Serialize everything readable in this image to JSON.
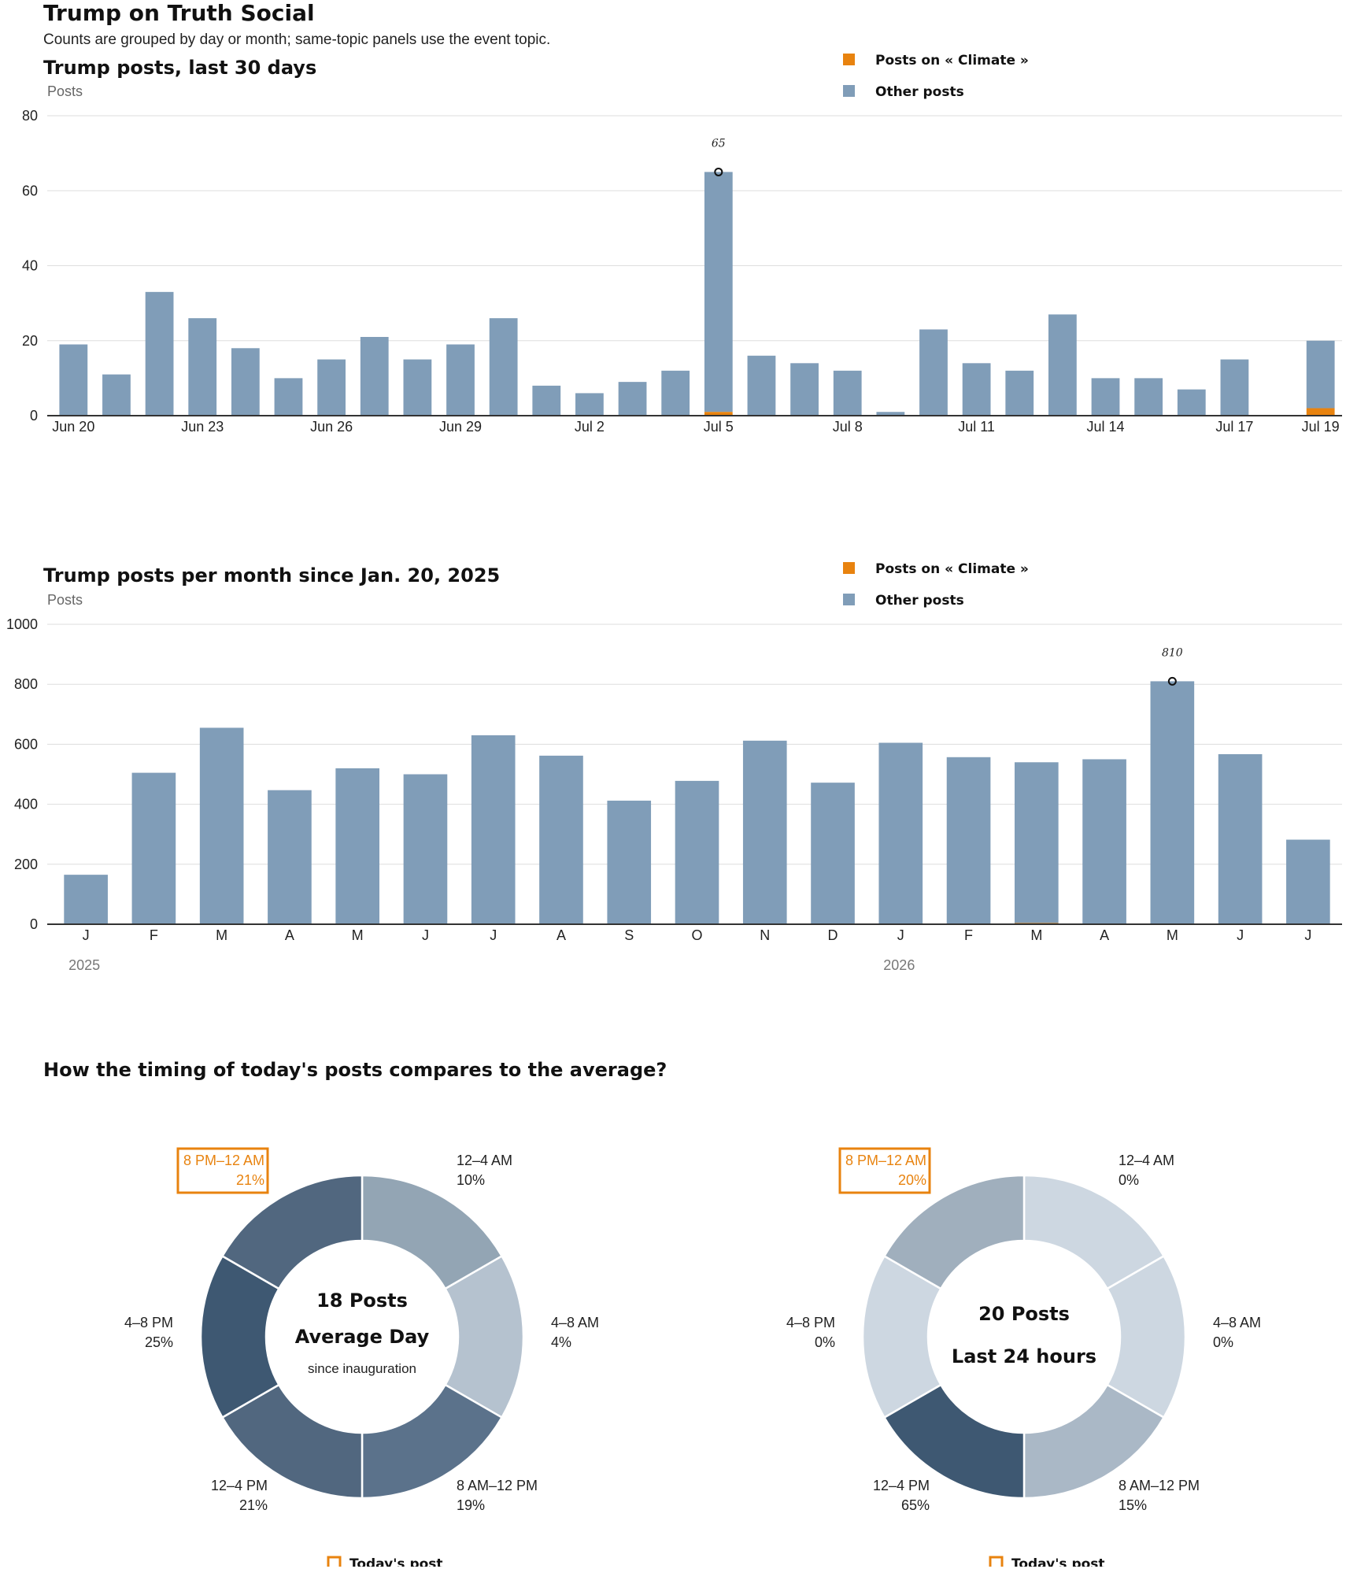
{
  "header": {
    "title": "Trump on Truth Social",
    "subtitle": "Counts are grouped by day or month; same-topic panels use the event topic."
  },
  "colors": {
    "topic": "#e8830f",
    "other": "#809db8",
    "axis": "#333333",
    "grid": "#dddddd"
  },
  "chart_data": [
    {
      "type": "bar",
      "stacked": true,
      "title": "Trump posts, last 30 days",
      "ylabel": "Posts",
      "ylim": [
        0,
        80
      ],
      "yticks": [
        0,
        20,
        40,
        60,
        80
      ],
      "grid": true,
      "legend": {
        "placement": "top-right",
        "entries": [
          "Posts on « Climate »",
          "Other posts"
        ]
      },
      "categories": [
        "Jun 20",
        "Jun 21",
        "Jun 22",
        "Jun 23",
        "Jun 24",
        "Jun 25",
        "Jun 26",
        "Jun 27",
        "Jun 28",
        "Jun 29",
        "Jun 30",
        "Jul 1",
        "Jul 2",
        "Jul 3",
        "Jul 4",
        "Jul 5",
        "Jul 6",
        "Jul 7",
        "Jul 8",
        "Jul 9",
        "Jul 10",
        "Jul 11",
        "Jul 12",
        "Jul 13",
        "Jul 14",
        "Jul 15",
        "Jul 16",
        "Jul 17",
        "Jul 18",
        "Jul 19"
      ],
      "tick_labels": [
        "Jun 20",
        "Jun 23",
        "Jun 26",
        "Jun 29",
        "Jul 2",
        "Jul 5",
        "Jul 8",
        "Jul 11",
        "Jul 14",
        "Jul 17",
        "Jul 19"
      ],
      "series": [
        {
          "name": "Posts on « Climate »",
          "color": "#e8830f",
          "values": [
            0,
            0,
            0,
            0,
            0,
            0,
            0,
            0,
            0,
            0,
            0,
            0,
            0,
            0,
            0,
            1,
            0,
            0,
            0,
            0,
            0,
            0,
            0,
            0,
            0,
            0,
            0,
            0,
            0,
            2
          ]
        },
        {
          "name": "Other posts",
          "color": "#809db8",
          "values": [
            19,
            11,
            33,
            26,
            18,
            10,
            15,
            21,
            15,
            19,
            26,
            8,
            6,
            9,
            12,
            64,
            16,
            14,
            12,
            1,
            23,
            14,
            12,
            27,
            10,
            10,
            7,
            15,
            0,
            18
          ]
        }
      ],
      "annotation": {
        "category": "Jul 5",
        "label": "65"
      }
    },
    {
      "type": "bar",
      "stacked": true,
      "title": "Trump posts per month since Jan. 20, 2025",
      "ylabel": "Posts",
      "ylim": [
        0,
        1000
      ],
      "yticks": [
        0,
        200,
        400,
        600,
        800,
        1000
      ],
      "grid": true,
      "legend": {
        "placement": "top-right",
        "entries": [
          "Posts on « Climate »",
          "Other posts"
        ]
      },
      "categories": [
        "J",
        "F",
        "M",
        "A",
        "M",
        "J",
        "J",
        "A",
        "S",
        "O",
        "N",
        "D",
        "J",
        "F",
        "M",
        "A",
        "M",
        "J",
        "J"
      ],
      "year_labels": [
        {
          "index": 0,
          "label": "2025"
        },
        {
          "index": 12,
          "label": "2026"
        }
      ],
      "series": [
        {
          "name": "Posts on « Climate »",
          "color": "#e8830f",
          "values": [
            0,
            0,
            0,
            0,
            0,
            0,
            0,
            0,
            0,
            0,
            0,
            0,
            0,
            0,
            4,
            0,
            0,
            0,
            0
          ]
        },
        {
          "name": "Other posts",
          "color": "#809db8",
          "values": [
            165,
            505,
            655,
            447,
            520,
            500,
            630,
            562,
            412,
            478,
            612,
            472,
            605,
            557,
            536,
            550,
            810,
            567,
            282
          ]
        }
      ],
      "annotation": {
        "category_index": 16,
        "label": "810"
      }
    },
    {
      "type": "pie",
      "donut": true,
      "section_title": "How the timing of today's posts compares to the average?",
      "center": {
        "count": "18 Posts",
        "label": "Average Day",
        "sub": "since inauguration"
      },
      "slices": [
        {
          "label": "12–4 AM",
          "value": 10,
          "pct": "10%",
          "color": "#93a5b4"
        },
        {
          "label": "4–8 AM",
          "value": 4,
          "pct": "4%",
          "color": "#b5c2cf"
        },
        {
          "label": "8 AM–12 PM",
          "value": 19,
          "pct": "19%",
          "color": "#5b728b"
        },
        {
          "label": "12–4 PM",
          "value": 21,
          "pct": "21%",
          "color": "#51677f"
        },
        {
          "label": "4–8 PM",
          "value": 25,
          "pct": "25%",
          "color": "#3e5872"
        },
        {
          "label": "8 PM–12 AM",
          "value": 21,
          "pct": "21%",
          "color": "#51677f",
          "highlight": true
        }
      ],
      "legend": {
        "label": "Today's post",
        "color": "#e8830f"
      }
    },
    {
      "type": "pie",
      "donut": true,
      "center": {
        "count": "20 Posts",
        "label": "Last 24 hours"
      },
      "slices": [
        {
          "label": "12–4 AM",
          "value": 0,
          "pct": "0%",
          "color": "#cdd7e1"
        },
        {
          "label": "4–8 AM",
          "value": 0,
          "pct": "0%",
          "color": "#cdd7e1"
        },
        {
          "label": "8 AM–12 PM",
          "value": 15,
          "pct": "15%",
          "color": "#aab8c6"
        },
        {
          "label": "12–4 PM",
          "value": 65,
          "pct": "65%",
          "color": "#3e5872"
        },
        {
          "label": "4–8 PM",
          "value": 0,
          "pct": "0%",
          "color": "#cdd7e1"
        },
        {
          "label": "8 PM–12 AM",
          "value": 20,
          "pct": "20%",
          "color": "#a0afbd",
          "highlight": true
        }
      ],
      "legend": {
        "label": "Today's post",
        "color": "#e8830f"
      }
    }
  ]
}
